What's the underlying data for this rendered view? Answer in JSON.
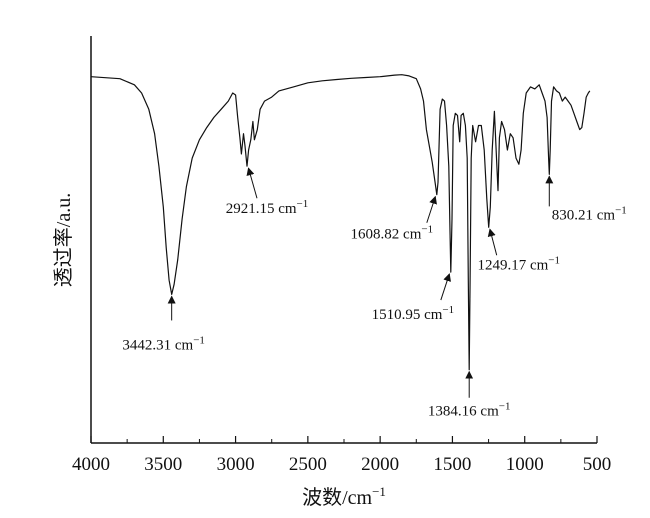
{
  "chart_data": {
    "type": "line",
    "xlabel": "波数/cm",
    "xlabel_sup": "−1",
    "ylabel": "透过率/a.u.",
    "xlim": [
      4000,
      500
    ],
    "x_reversed": true,
    "xticks": [
      4000,
      3500,
      3000,
      2500,
      2000,
      1500,
      1000,
      500
    ],
    "yticks": [],
    "ylim": [
      0,
      100
    ],
    "grid": false,
    "legend": "none",
    "line_color": "#111111",
    "series": [
      {
        "values": [
          [
            4000,
            90
          ],
          [
            3800,
            89.5
          ],
          [
            3700,
            88
          ],
          [
            3650,
            86
          ],
          [
            3600,
            82
          ],
          [
            3560,
            76
          ],
          [
            3530,
            68
          ],
          [
            3500,
            58
          ],
          [
            3480,
            48
          ],
          [
            3460,
            40
          ],
          [
            3442,
            36.5
          ],
          [
            3425,
            39
          ],
          [
            3400,
            45
          ],
          [
            3370,
            55
          ],
          [
            3340,
            63
          ],
          [
            3300,
            70
          ],
          [
            3250,
            74.5
          ],
          [
            3200,
            77.5
          ],
          [
            3150,
            80
          ],
          [
            3100,
            82
          ],
          [
            3050,
            84
          ],
          [
            3020,
            86
          ],
          [
            3000,
            85.5
          ],
          [
            2985,
            80
          ],
          [
            2970,
            75
          ],
          [
            2960,
            71
          ],
          [
            2945,
            76
          ],
          [
            2935,
            73
          ],
          [
            2921,
            68
          ],
          [
            2910,
            72
          ],
          [
            2895,
            74.5
          ],
          [
            2880,
            79
          ],
          [
            2870,
            74.5
          ],
          [
            2850,
            77
          ],
          [
            2830,
            82
          ],
          [
            2800,
            84
          ],
          [
            2750,
            85
          ],
          [
            2700,
            86.5
          ],
          [
            2600,
            87.5
          ],
          [
            2500,
            88.5
          ],
          [
            2400,
            89
          ],
          [
            2300,
            89.3
          ],
          [
            2200,
            89.6
          ],
          [
            2100,
            89.8
          ],
          [
            2000,
            90
          ],
          [
            1900,
            90.4
          ],
          [
            1850,
            90.5
          ],
          [
            1800,
            90.2
          ],
          [
            1750,
            89.5
          ],
          [
            1720,
            87
          ],
          [
            1700,
            84
          ],
          [
            1680,
            77
          ],
          [
            1660,
            73
          ],
          [
            1640,
            69
          ],
          [
            1620,
            64
          ],
          [
            1608,
            61
          ],
          [
            1600,
            64
          ],
          [
            1585,
            82
          ],
          [
            1570,
            84.5
          ],
          [
            1555,
            84
          ],
          [
            1540,
            78
          ],
          [
            1525,
            68
          ],
          [
            1517,
            52
          ],
          [
            1511,
            42
          ],
          [
            1503,
            55
          ],
          [
            1495,
            78
          ],
          [
            1480,
            81
          ],
          [
            1465,
            80.5
          ],
          [
            1450,
            74
          ],
          [
            1440,
            80.5
          ],
          [
            1425,
            81
          ],
          [
            1410,
            78
          ],
          [
            1398,
            70
          ],
          [
            1390,
            40
          ],
          [
            1384,
            18
          ],
          [
            1378,
            40
          ],
          [
            1370,
            70
          ],
          [
            1360,
            78
          ],
          [
            1340,
            74
          ],
          [
            1320,
            78
          ],
          [
            1300,
            78
          ],
          [
            1280,
            72
          ],
          [
            1262,
            60
          ],
          [
            1249,
            53
          ],
          [
            1238,
            58
          ],
          [
            1225,
            72
          ],
          [
            1210,
            81.5
          ],
          [
            1195,
            70
          ],
          [
            1185,
            62
          ],
          [
            1175,
            75
          ],
          [
            1160,
            79
          ],
          [
            1140,
            77
          ],
          [
            1120,
            72
          ],
          [
            1100,
            76
          ],
          [
            1080,
            75
          ],
          [
            1060,
            70
          ],
          [
            1040,
            68.5
          ],
          [
            1025,
            72
          ],
          [
            1010,
            81
          ],
          [
            990,
            86
          ],
          [
            960,
            87.5
          ],
          [
            930,
            87
          ],
          [
            900,
            88
          ],
          [
            880,
            86
          ],
          [
            860,
            84
          ],
          [
            845,
            80
          ],
          [
            835,
            70
          ],
          [
            830,
            66
          ],
          [
            824,
            72
          ],
          [
            815,
            84
          ],
          [
            800,
            87.5
          ],
          [
            780,
            86.5
          ],
          [
            760,
            86
          ],
          [
            740,
            84
          ],
          [
            720,
            85
          ],
          [
            700,
            84
          ],
          [
            680,
            83
          ],
          [
            660,
            81
          ],
          [
            640,
            79
          ],
          [
            620,
            77
          ],
          [
            605,
            77.5
          ],
          [
            590,
            81
          ],
          [
            575,
            85
          ],
          [
            560,
            86
          ],
          [
            550,
            86.5
          ]
        ]
      }
    ],
    "annotations": [
      {
        "text": "3442.31 cm",
        "sup": "−1",
        "x": 3442,
        "y": 36.5
      },
      {
        "text": "2921.15 cm",
        "sup": "−1",
        "x": 2921,
        "y": 68
      },
      {
        "text": "1608.82 cm",
        "sup": "−1",
        "x": 1608,
        "y": 61
      },
      {
        "text": "1510.95 cm",
        "sup": "−1",
        "x": 1511,
        "y": 42
      },
      {
        "text": "1384.16 cm",
        "sup": "−1",
        "x": 1384,
        "y": 18
      },
      {
        "text": "1249.17 cm",
        "sup": "−1",
        "x": 1249,
        "y": 53
      },
      {
        "text": "830.21 cm",
        "sup": "−1",
        "x": 830,
        "y": 66
      }
    ]
  }
}
